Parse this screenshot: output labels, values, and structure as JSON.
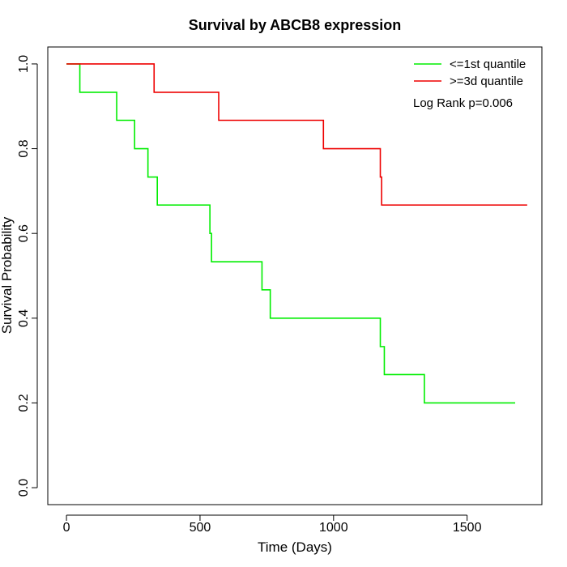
{
  "chart_data": {
    "type": "line",
    "title": "Survival by ABCB8 expression",
    "xlabel": "Time (Days)",
    "ylabel": "Survival Probability",
    "xlim": [
      -70,
      1780
    ],
    "ylim": [
      -0.04,
      1.04
    ],
    "xticks": [
      0,
      500,
      1000,
      1500
    ],
    "yticks": [
      0.0,
      0.2,
      0.4,
      0.6,
      0.8,
      1.0
    ],
    "xtick_labels": [
      "0",
      "500",
      "1000",
      "1500"
    ],
    "ytick_labels": [
      "0.0",
      "0.2",
      "0.4",
      "0.6",
      "0.8",
      "1.0"
    ],
    "legend_position": "top-right",
    "annotation": "Log Rank p=0.006",
    "grid": false,
    "series": [
      {
        "name": "<=1st quantile",
        "color": "#00ee00",
        "step": "post",
        "x": [
          0,
          50,
          188,
          255,
          305,
          340,
          537,
          543,
          732,
          763,
          1175,
          1190,
          1340,
          1680
        ],
        "y": [
          1.0,
          0.933,
          0.867,
          0.8,
          0.733,
          0.667,
          0.6,
          0.533,
          0.467,
          0.4,
          0.333,
          0.267,
          0.2,
          0.2
        ]
      },
      {
        "name": ">=3d quantile",
        "color": "#ee0000",
        "step": "post",
        "x": [
          0,
          328,
          570,
          962,
          1175,
          1180,
          1725
        ],
        "y": [
          1.0,
          0.933,
          0.867,
          0.8,
          0.733,
          0.667,
          0.667
        ]
      }
    ]
  }
}
